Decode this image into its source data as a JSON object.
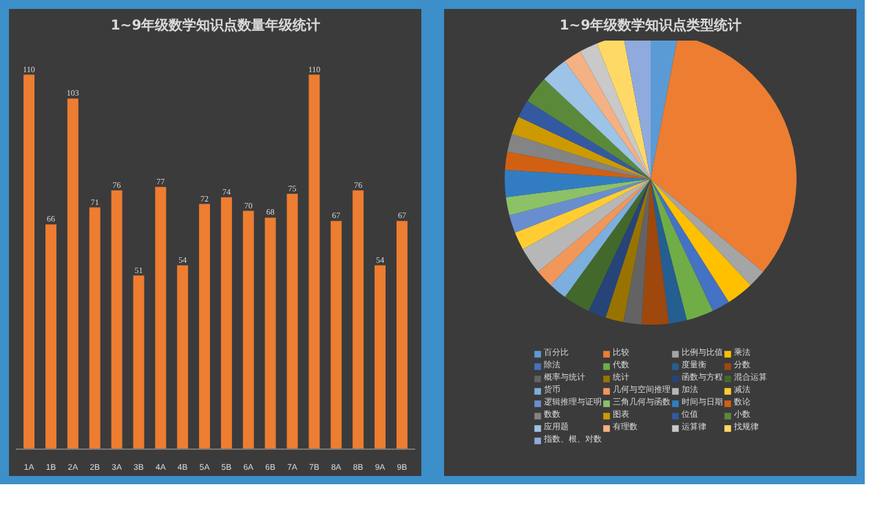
{
  "chart_data": [
    {
      "type": "bar",
      "title": "1~9年级数学知识点数量年级统计",
      "categories": [
        "1A",
        "1B",
        "2A",
        "2B",
        "3A",
        "3B",
        "4A",
        "4B",
        "5A",
        "5B",
        "6A",
        "6B",
        "7A",
        "7B",
        "8A",
        "8B",
        "9A",
        "9B"
      ],
      "values": [
        110,
        66,
        103,
        71,
        76,
        51,
        77,
        54,
        72,
        74,
        70,
        68,
        75,
        110,
        67,
        76,
        54,
        67
      ],
      "color": "#ed7d31",
      "data_labels": true,
      "ylim": [
        0,
        120
      ],
      "tick_labels": "x"
    },
    {
      "type": "pie",
      "title": "1~9年级数学知识点类型统计",
      "legend": "bottom",
      "categories": [
        "百分比",
        "比较",
        "比例与比值",
        "乘法",
        "除法",
        "代数",
        "度量衡",
        "分数",
        "概率与统计",
        "统计",
        "函数与方程",
        "混合运算",
        "货币",
        "几何与空间推理",
        "加法",
        "减法",
        "逻辑推理与证明",
        "三角几何与函数",
        "时间与日期",
        "数论",
        "数数",
        "图表",
        "位值",
        "小数",
        "应用题",
        "有理数",
        "运算律",
        "找规律",
        "指数、根、对数"
      ],
      "values": [
        3,
        33,
        2,
        3,
        2,
        3,
        2,
        3,
        2,
        2,
        2,
        3,
        2,
        2,
        3,
        2,
        2,
        2,
        3,
        2,
        2,
        2,
        2,
        3,
        3,
        2,
        2,
        3,
        3
      ],
      "colors": [
        "#5b9bd5",
        "#ed7d31",
        "#a5a5a5",
        "#ffc000",
        "#4472c4",
        "#70ad47",
        "#255e91",
        "#9e480e",
        "#636363",
        "#997300",
        "#264478",
        "#43682b",
        "#7cafdd",
        "#f1975a",
        "#b7b7b7",
        "#ffcd33",
        "#698ed0",
        "#8cc168",
        "#327dc2",
        "#d26012",
        "#848484",
        "#cc9a00",
        "#335aa1",
        "#5a8a39",
        "#9dc3e6",
        "#f4b183",
        "#c9c9c9",
        "#ffd966",
        "#8faadc"
      ]
    }
  ]
}
